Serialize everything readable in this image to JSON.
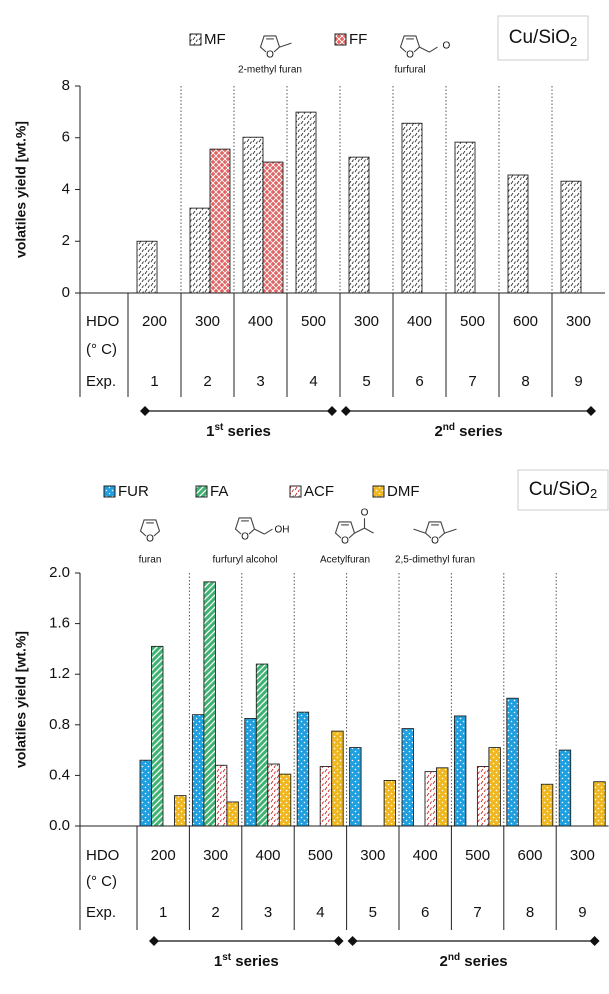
{
  "chart_data": [
    {
      "type": "bar",
      "title": {
        "main": "Cu/SiO",
        "sub": "2"
      },
      "y_label": "volatiles yield [wt.%]",
      "ylim": [
        0,
        8
      ],
      "yticks": [
        0,
        2,
        4,
        6,
        8
      ],
      "row_labels": [
        "HDO",
        "(° C)",
        "Exp."
      ],
      "hdo": [
        "200",
        "300",
        "400",
        "500",
        "300",
        "400",
        "500",
        "600",
        "300"
      ],
      "categories": [
        "1",
        "2",
        "3",
        "4",
        "5",
        "6",
        "7",
        "8",
        "9"
      ],
      "series": [
        {
          "name": "MF",
          "color": "#ffffff",
          "ink": "#333333",
          "pattern": "dashes",
          "values": [
            2.0,
            3.28,
            6.02,
            6.99,
            5.25,
            6.56,
            5.83,
            4.56,
            4.32
          ]
        },
        {
          "name": "FF",
          "color": "#e06666",
          "ink": "#ffffff",
          "pattern": "checks",
          "values": [
            null,
            5.56,
            5.06,
            null,
            null,
            null,
            null,
            null,
            null
          ]
        }
      ],
      "structures": [
        "2-methyl furan",
        "furfural"
      ],
      "groups": [
        {
          "ordinal": "1",
          "suffix": "st",
          "word": " series"
        },
        {
          "ordinal": "2",
          "suffix": "nd",
          "word": " series"
        }
      ]
    },
    {
      "type": "bar",
      "title": {
        "main": "Cu/SiO",
        "sub": "2"
      },
      "y_label": "volatiles yield [wt.%]",
      "ylim": [
        0,
        2
      ],
      "yticks": [
        {
          "value": 0,
          "label": "0.0"
        },
        0.4,
        0.8,
        1.2,
        1.6,
        {
          "value": 2,
          "label": "2.0"
        }
      ],
      "row_labels": [
        "HDO",
        "(° C)",
        "Exp."
      ],
      "hdo": [
        "200",
        "300",
        "400",
        "500",
        "300",
        "400",
        "500",
        "600",
        "300"
      ],
      "categories": [
        "1",
        "2",
        "3",
        "4",
        "5",
        "6",
        "7",
        "8",
        "9"
      ],
      "series": [
        {
          "name": "FUR",
          "color": "#1e9fe0",
          "ink": "#ffffff",
          "pattern": "dots",
          "values": [
            0.52,
            0.88,
            0.85,
            0.9,
            0.62,
            0.77,
            0.87,
            1.01,
            0.6
          ]
        },
        {
          "name": "FA",
          "color": "#3cb371",
          "ink": "#ffffff",
          "pattern": "stripes",
          "values": [
            1.42,
            1.93,
            1.28,
            null,
            null,
            null,
            null,
            null,
            null
          ]
        },
        {
          "name": "ACF",
          "color": "#ffffff",
          "ink": "#cc2222",
          "pattern": "dashes",
          "values": [
            null,
            0.48,
            0.49,
            0.47,
            null,
            0.43,
            0.47,
            null,
            null
          ]
        },
        {
          "name": "DMF",
          "color": "#f0b820",
          "ink": "#ffffff",
          "pattern": "dots",
          "values": [
            0.24,
            0.19,
            0.41,
            0.75,
            0.36,
            0.46,
            0.62,
            0.33,
            0.35
          ]
        }
      ],
      "structures": [
        "furan",
        "furfuryl alcohol",
        "Acetylfuran",
        "2,5-dimethyl furan"
      ],
      "groups": [
        {
          "ordinal": "1",
          "suffix": "st",
          "word": " series"
        },
        {
          "ordinal": "2",
          "suffix": "nd",
          "word": " series"
        }
      ]
    }
  ],
  "structure_atoms": [
    "O",
    "OH"
  ]
}
